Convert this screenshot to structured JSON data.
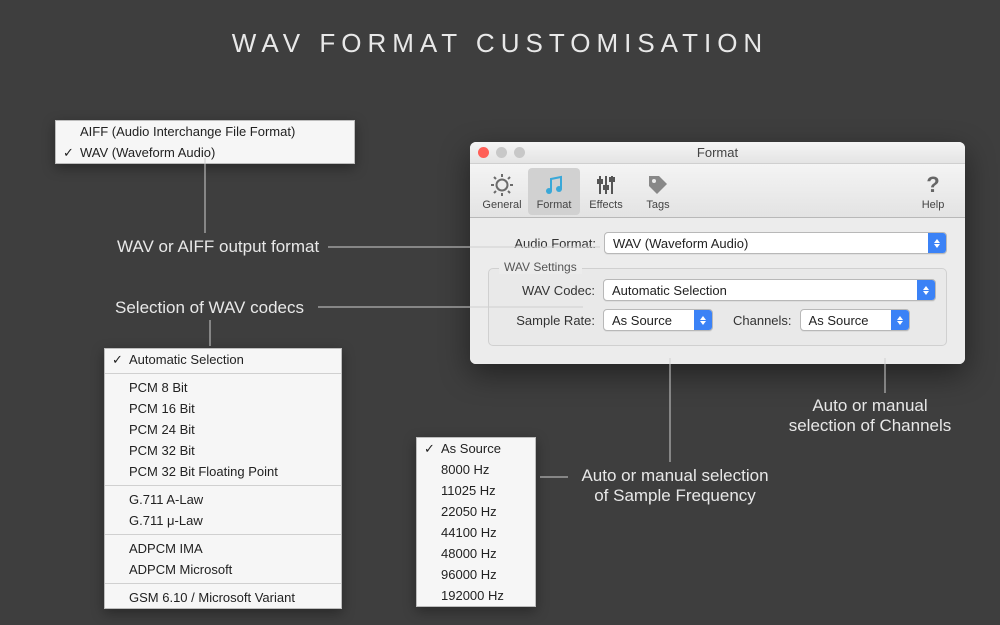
{
  "page": {
    "title": "WAV  FORMAT  CUSTOMISATION",
    "background_color": "#3e3e3e",
    "title_color": "#e8e8e8",
    "title_fontsize": 26,
    "title_letter_spacing": 6,
    "annotation_color": "#e8e8e8",
    "annotation_fontsize": 17
  },
  "annotations": {
    "output_format": "WAV or AIFF output format",
    "codecs": "Selection of WAV codecs",
    "sample_freq_1": "Auto or manual selection",
    "sample_freq_2": "of Sample Frequency",
    "channels_1": "Auto or manual",
    "channels_2": "selection of Channels"
  },
  "format_menu": {
    "items": [
      {
        "label": "AIFF (Audio Interchange File Format)",
        "checked": false
      },
      {
        "label": "WAV (Waveform Audio)",
        "checked": true
      }
    ]
  },
  "codec_menu": {
    "groups": [
      [
        {
          "label": "Automatic Selection",
          "checked": true
        }
      ],
      [
        {
          "label": "PCM 8 Bit"
        },
        {
          "label": "PCM 16 Bit"
        },
        {
          "label": "PCM 24 Bit"
        },
        {
          "label": "PCM 32 Bit"
        },
        {
          "label": "PCM 32 Bit Floating Point"
        }
      ],
      [
        {
          "label": "G.711 A-Law"
        },
        {
          "label": "G.711 μ-Law"
        }
      ],
      [
        {
          "label": "ADPCM IMA"
        },
        {
          "label": "ADPCM Microsoft"
        }
      ],
      [
        {
          "label": "GSM 6.10 / Microsoft Variant"
        }
      ]
    ]
  },
  "sample_rate_menu": {
    "items": [
      {
        "label": "As Source",
        "checked": true
      },
      {
        "label": "8000 Hz"
      },
      {
        "label": "11025 Hz"
      },
      {
        "label": "22050 Hz"
      },
      {
        "label": "44100 Hz"
      },
      {
        "label": "48000 Hz"
      },
      {
        "label": "96000 Hz"
      },
      {
        "label": "192000 Hz"
      }
    ]
  },
  "window": {
    "title": "Format",
    "traffic_colors": {
      "close": "#ff5f57",
      "inactive": "#c8c8c8"
    },
    "toolbar": {
      "tabs": [
        {
          "id": "general",
          "label": "General",
          "icon": "gear"
        },
        {
          "id": "format",
          "label": "Format",
          "icon": "note",
          "active": true
        },
        {
          "id": "effects",
          "label": "Effects",
          "icon": "sliders"
        },
        {
          "id": "tags",
          "label": "Tags",
          "icon": "tag"
        }
      ],
      "help": {
        "label": "Help",
        "icon": "question"
      }
    },
    "body": {
      "audio_format": {
        "label": "Audio Format:",
        "value": "WAV (Waveform Audio)"
      },
      "group_title": "WAV Settings",
      "wav_codec": {
        "label": "WAV Codec:",
        "value": "Automatic Selection"
      },
      "sample_rate": {
        "label": "Sample Rate:",
        "value": "As Source"
      },
      "channels": {
        "label": "Channels:",
        "value": "As Source"
      }
    },
    "colors": {
      "window_bg": "#ececec",
      "select_accent": "#3b82f6",
      "border": "#b8b8b8"
    }
  }
}
